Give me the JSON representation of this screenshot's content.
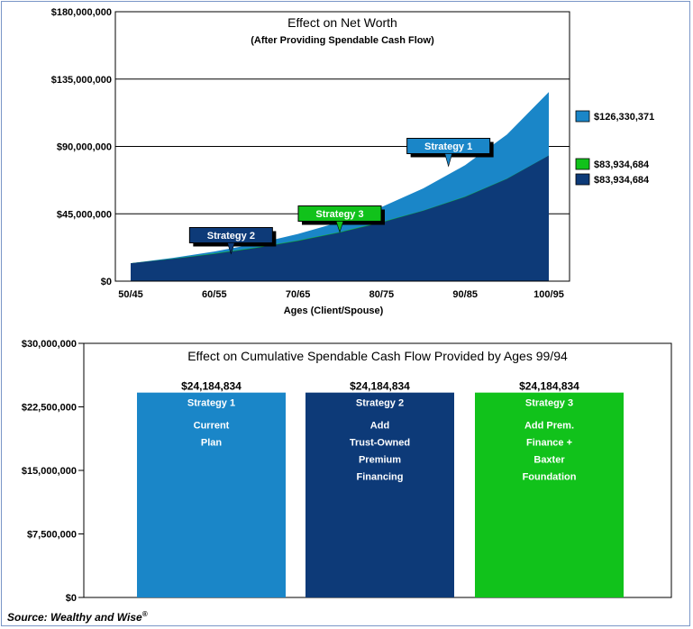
{
  "chart_data": [
    {
      "type": "area",
      "title": "Effect on Net Worth",
      "subtitle": "(After Providing Spendable Cash Flow)",
      "xlabel": "Ages (Client/Spouse)",
      "ylabel": "",
      "ylim": [
        0,
        180000000
      ],
      "yticks": [
        "$180,000,000",
        "$135,000,000",
        "$90,000,000",
        "$45,000,000",
        "$0"
      ],
      "ytick_values": [
        180000000,
        135000000,
        90000000,
        45000000,
        0
      ],
      "xticks": [
        "50/45",
        "60/55",
        "70/65",
        "80/75",
        "90/85",
        "100/95"
      ],
      "x": [
        0,
        5,
        10,
        15,
        20,
        25,
        30,
        35,
        40,
        45,
        50
      ],
      "series": [
        {
          "name": "Strategy 1",
          "color": "#1a86c8",
          "values": [
            12000000,
            15500000,
            19800000,
            25000000,
            31500000,
            39500000,
            49500000,
            62000000,
            77500000,
            98000000,
            126330371
          ],
          "end_label": "$126,330,371"
        },
        {
          "name": "Strategy 3",
          "color": "#11c21b",
          "values": [
            12000000,
            15000000,
            18500000,
            22500000,
            27200000,
            32800000,
            39500000,
            47200000,
            56500000,
            68500000,
            83934684
          ],
          "end_label": "$83,934,684"
        },
        {
          "name": "Strategy 2",
          "color": "#0d3a78",
          "values": [
            12000000,
            14800000,
            18200000,
            22200000,
            26900000,
            32500000,
            39200000,
            47000000,
            56300000,
            68300000,
            83934684
          ],
          "end_label": "$83,934,684"
        }
      ],
      "callouts": [
        {
          "text": "Strategy 1",
          "color": "#1a86c8",
          "x": 38
        },
        {
          "text": "Strategy 3",
          "color": "#11c21b",
          "x": 25
        },
        {
          "text": "Strategy 2",
          "color": "#0d3a78",
          "x": 12
        }
      ],
      "legend": "right",
      "grid": true
    },
    {
      "type": "bar",
      "title": "Effect on Cumulative Spendable Cash Flow Provided by Ages 99/94",
      "xlabel": "",
      "ylabel": "",
      "ylim": [
        0,
        30000000
      ],
      "yticks": [
        "$30,000,000",
        "$22,500,000",
        "$15,000,000",
        "$7,500,000",
        "$0"
      ],
      "ytick_values": [
        30000000,
        22500000,
        15000000,
        7500000,
        0
      ],
      "grid": false,
      "bars": [
        {
          "name": "Strategy 1",
          "value": 24184834,
          "value_label": "$24,184,834",
          "color": "#1a86c8",
          "lines": [
            "Current",
            "Plan"
          ]
        },
        {
          "name": "Strategy 2",
          "value": 24184834,
          "value_label": "$24,184,834",
          "color": "#0d3a78",
          "lines": [
            "Add",
            "Trust-Owned",
            "Premium",
            "Financing"
          ]
        },
        {
          "name": "Strategy 3",
          "value": 24184834,
          "value_label": "$24,184,834",
          "color": "#11c21b",
          "lines": [
            "Add Prem.",
            "Finance +",
            "Baxter",
            "Foundation"
          ]
        }
      ]
    }
  ],
  "source": {
    "text": "Source: Wealthy and Wise",
    "mark": "®"
  }
}
